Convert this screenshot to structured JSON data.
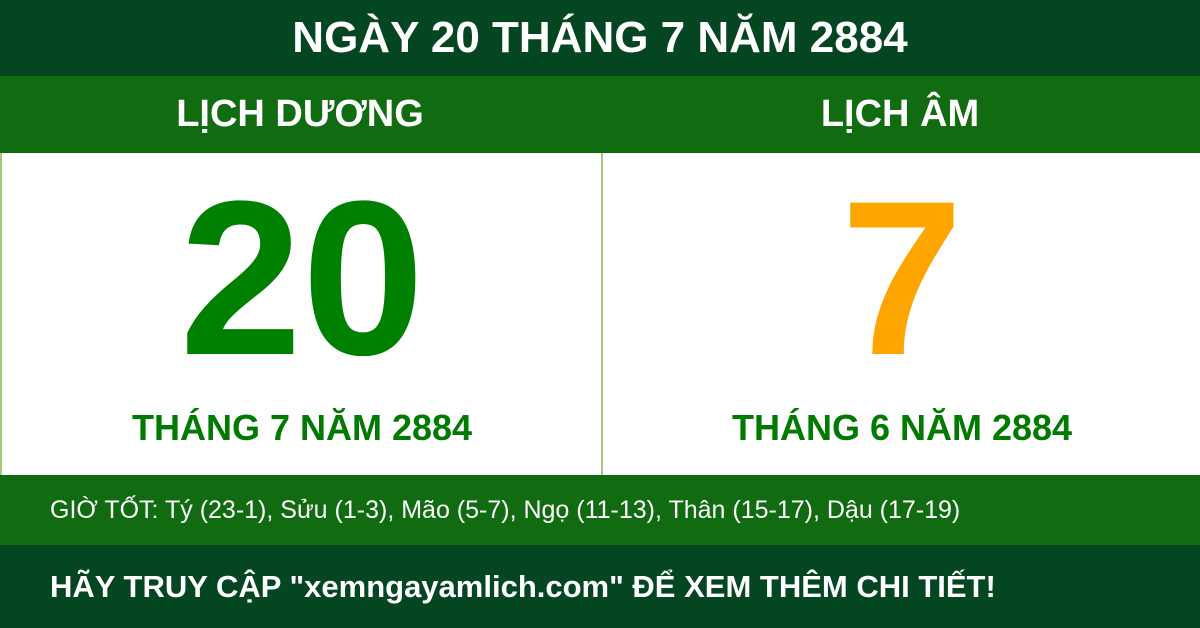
{
  "title": "NGÀY 20 THÁNG 7 NĂM 2884",
  "solar": {
    "label": "LỊCH DƯƠNG",
    "day": "20",
    "month_year": "THÁNG 7 NĂM 2884"
  },
  "lunar": {
    "label": "LỊCH ÂM",
    "day": "7",
    "month_year": "THÁNG 6 NĂM 2884"
  },
  "good_hours": "GIỜ TỐT: Tý (23-1), Sửu (1-3), Mão (5-7), Ngọ (11-13), Thân (15-17), Dậu (17-19)",
  "footer": "HÃY TRUY CẬP \"xemngayamlich.com\" ĐỂ XEM THÊM CHI TIẾT!",
  "colors": {
    "dark_green": "#044522",
    "green": "#116b10",
    "solar_day": "#008000",
    "lunar_day": "#ffa500"
  }
}
